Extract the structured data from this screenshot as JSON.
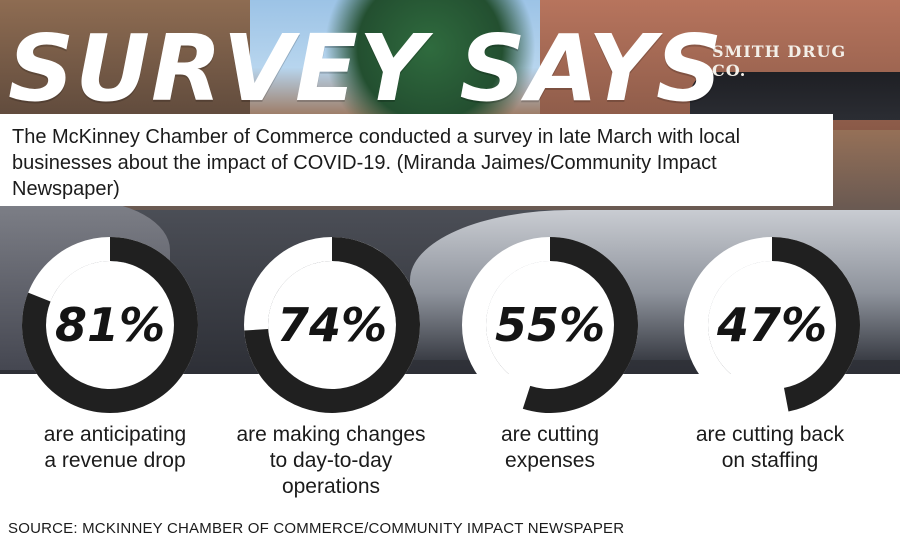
{
  "headline": "SURVEY SAYS",
  "caption": "The McKinney Chamber of Commerce conducted a survey in late March with local businesses about the impact of COVID-19. (Miranda Jaimes/Community Impact Newspaper)",
  "background_sign": "SMITH DRUG CO.",
  "source": "SOURCE: MCKINNEY CHAMBER OF COMMERCE/COMMUNITY IMPACT NEWSPAPER",
  "colors": {
    "ring_track": "#ffffff",
    "ring_fill": "#202020",
    "text": "#1b1b1b"
  },
  "chart_data": {
    "type": "donut",
    "series": [
      {
        "label": "81%",
        "value": 81,
        "description": [
          "are anticipating",
          "a revenue drop"
        ]
      },
      {
        "label": "74%",
        "value": 74,
        "description": [
          "are making changes",
          "to day-to-day",
          "operations"
        ]
      },
      {
        "label": "55%",
        "value": 55,
        "description": [
          "are cutting",
          "expenses"
        ]
      },
      {
        "label": "47%",
        "value": 47,
        "description": [
          "are cutting back",
          "on staffing"
        ]
      }
    ],
    "unit": "%",
    "max": 100
  }
}
